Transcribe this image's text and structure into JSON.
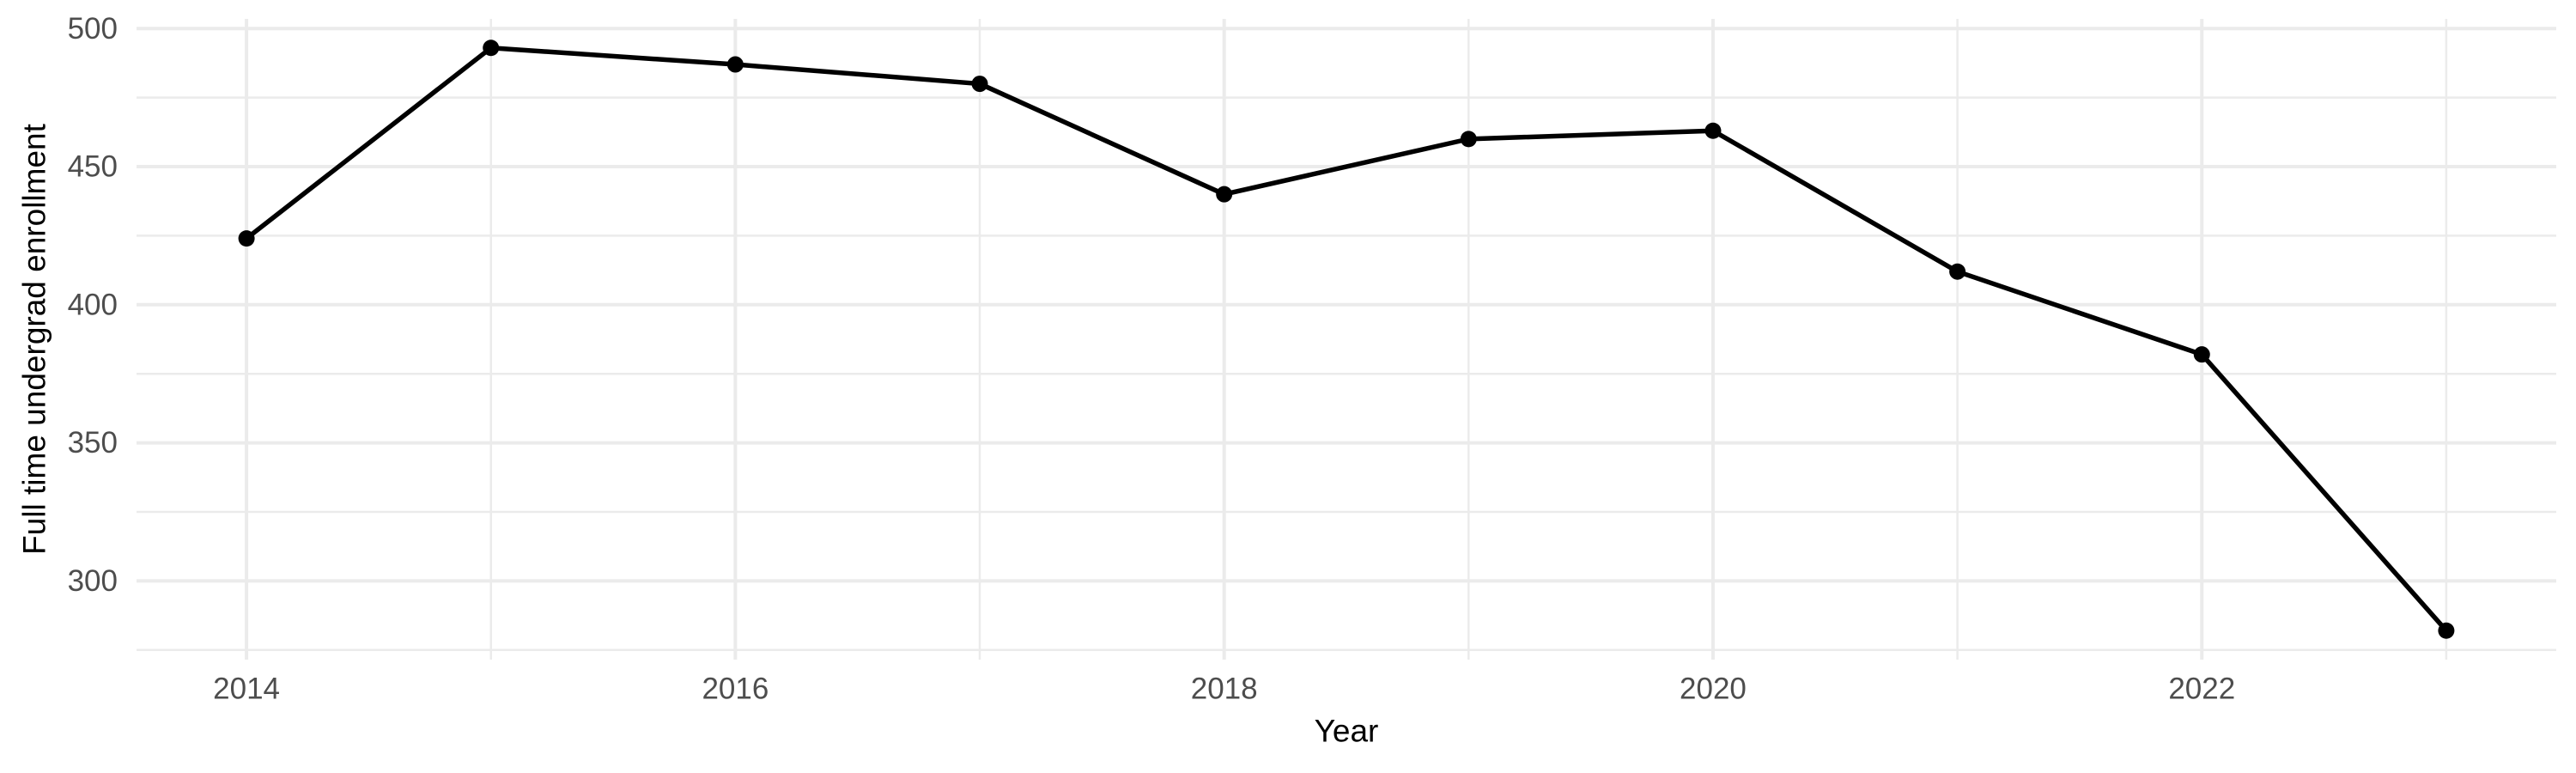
{
  "chart_data": {
    "type": "line",
    "title": "",
    "xlabel": "Year",
    "ylabel": "Full time undergrad enrollment",
    "series_name": "Full time undergrad enrollment",
    "x": [
      2014,
      2015,
      2016,
      2017,
      2018,
      2019,
      2020,
      2021,
      2022,
      2023
    ],
    "values": [
      424,
      493,
      487,
      480,
      440,
      460,
      463,
      412,
      382,
      282
    ],
    "x_axis": {
      "major_ticks": [
        2014,
        2016,
        2018,
        2020,
        2022
      ],
      "minor_ticks": [
        2015,
        2017,
        2019,
        2021,
        2023
      ],
      "range": [
        2013.55,
        2023.45
      ]
    },
    "y_axis": {
      "major_ticks": [
        500,
        450,
        400,
        350,
        300
      ],
      "minor_ticks": [
        475,
        425,
        375,
        325,
        275
      ],
      "range": [
        271.5,
        503.5
      ]
    },
    "grid": true,
    "legend": "none",
    "colors": {
      "line": "#000000",
      "point": "#000000",
      "grid": "#ebebeb",
      "tick_label": "#4d4d4d",
      "axis_title": "#000000",
      "background": "#ffffff"
    }
  }
}
